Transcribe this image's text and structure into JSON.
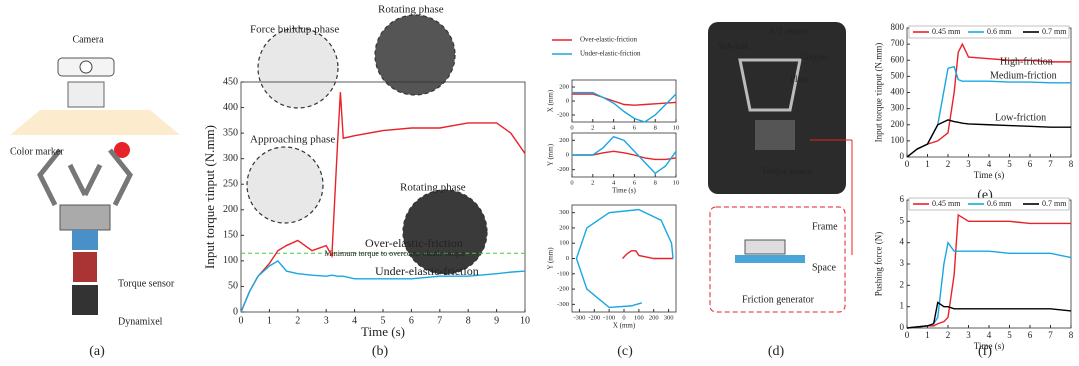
{
  "figure": {
    "captions": [
      "(a)",
      "(b)",
      "(c)",
      "(d)",
      "(e)",
      "(f)"
    ],
    "a_labels": [
      "Camera",
      "Color marker",
      "Torque sensor",
      "Dynamixel"
    ],
    "d_labels": [
      "Sub-link",
      "F/T sensor",
      "Gripper",
      "Plate",
      "Torque sensor",
      "Frame",
      "Space",
      "Friction generator"
    ]
  },
  "chart_data": [
    {
      "type": "line",
      "ylabel": "Input torque τinput (N.mm)",
      "xlabel": "Time (s)",
      "x": [
        0,
        0.3,
        0.6,
        1,
        1.3,
        1.6,
        2,
        2.5,
        3,
        3.2,
        3.4,
        3.5,
        3.6,
        4,
        5,
        6,
        7,
        8,
        9,
        9.5,
        10
      ],
      "series": [
        {
          "name": "Over-elastic-friction",
          "color": "#e8222a",
          "values": [
            0,
            40,
            70,
            95,
            120,
            130,
            140,
            120,
            130,
            110,
            330,
            430,
            340,
            345,
            355,
            360,
            360,
            370,
            370,
            350,
            310
          ]
        },
        {
          "name": "Under-elastic-friction",
          "color": "#1aa7e0",
          "values": [
            0,
            40,
            70,
            90,
            100,
            80,
            75,
            72,
            70,
            72,
            70,
            70,
            70,
            65,
            65,
            65,
            70,
            70,
            75,
            78,
            80
          ]
        }
      ],
      "threshold": {
        "value": 115,
        "label": "Minimum torque to overcome elastic torque",
        "color": "#3ecf3e"
      },
      "annotations": [
        {
          "text": "Force buildup phase",
          "color": "#000"
        },
        {
          "text": "Rotating phase",
          "color": "#000"
        },
        {
          "text": "Approaching phase",
          "color": "#000"
        },
        {
          "text": "Rotating phase",
          "color": "#000"
        }
      ],
      "xlim": [
        0,
        10
      ],
      "xticks": [
        0,
        1,
        2,
        3,
        4,
        5,
        6,
        7,
        8,
        9,
        10
      ],
      "ylim": [
        0,
        450
      ],
      "yticks": [
        0,
        50,
        100,
        150,
        200,
        250,
        300,
        350,
        400,
        450
      ]
    },
    {
      "type": "line",
      "ylabel": "X (mm)",
      "x": [
        0,
        1,
        2,
        3,
        4,
        5,
        6,
        7,
        8,
        9,
        10
      ],
      "series": [
        {
          "name": "Over-elastic-friction",
          "color": "#e8222a",
          "values": [
            100,
            100,
            100,
            50,
            0,
            -50,
            -60,
            -50,
            -40,
            -30,
            -20
          ]
        },
        {
          "name": "Under-elastic-friction",
          "color": "#1aa7e0",
          "values": [
            120,
            120,
            120,
            50,
            -30,
            -150,
            -250,
            -300,
            -200,
            -50,
            100
          ]
        }
      ],
      "xlim": [
        0,
        10
      ],
      "xticks": [
        0,
        2,
        4,
        6,
        8,
        10
      ],
      "ylim": [
        -300,
        300
      ],
      "yticks": [
        -200,
        0,
        200
      ]
    },
    {
      "type": "line",
      "ylabel": "Y (mm)",
      "xlabel": "Time (s)",
      "x": [
        0,
        1,
        2,
        3,
        4,
        5,
        6,
        7,
        8,
        9,
        10
      ],
      "series": [
        {
          "color": "#e8222a",
          "values": [
            0,
            0,
            0,
            30,
            50,
            30,
            0,
            -40,
            -60,
            -60,
            -40
          ]
        },
        {
          "color": "#1aa7e0",
          "values": [
            0,
            0,
            0,
            100,
            250,
            200,
            50,
            -100,
            -250,
            -150,
            50
          ]
        }
      ],
      "xlim": [
        0,
        10
      ],
      "xticks": [
        0,
        2,
        4,
        6,
        8,
        10
      ],
      "ylim": [
        -300,
        300
      ],
      "yticks": [
        -200,
        0,
        200
      ]
    },
    {
      "type": "line",
      "ylabel": "Y (mm)",
      "xlabel": "X (mm)",
      "series": [
        {
          "color": "#e8222a",
          "x": [
            330,
            200,
            100,
            80,
            50,
            20,
            -10
          ],
          "values": [
            0,
            0,
            20,
            50,
            50,
            30,
            0
          ]
        },
        {
          "color": "#1aa7e0",
          "x": [
            330,
            320,
            250,
            100,
            -100,
            -250,
            -320,
            -250,
            -100,
            50,
            120
          ],
          "values": [
            0,
            100,
            250,
            320,
            300,
            200,
            0,
            -200,
            -320,
            -310,
            -290
          ]
        }
      ],
      "xlim": [
        -350,
        350
      ],
      "xticks": [
        -300,
        -200,
        -100,
        0,
        100,
        200,
        300
      ],
      "ylim": [
        -350,
        350
      ],
      "yticks": [
        -300,
        -200,
        -100,
        0,
        100,
        200,
        300
      ]
    },
    {
      "type": "line",
      "ylabel": "Input torque τinput (N.mm)",
      "xlabel": "Time (s)",
      "x": [
        0,
        0.5,
        1,
        1.5,
        2,
        2.3,
        2.5,
        2.7,
        3,
        4,
        5,
        6,
        7,
        8
      ],
      "series": [
        {
          "name": "0.45 mm",
          "color": "#e8222a",
          "values": [
            0,
            50,
            80,
            100,
            150,
            400,
            650,
            700,
            620,
            610,
            600,
            600,
            590,
            590
          ]
        },
        {
          "name": "0.6 mm",
          "color": "#1aa7e0",
          "values": [
            0,
            50,
            80,
            200,
            550,
            560,
            480,
            470,
            470,
            470,
            465,
            465,
            460,
            460
          ]
        },
        {
          "name": "0.7 mm",
          "color": "#000000",
          "values": [
            0,
            50,
            80,
            200,
            230,
            220,
            215,
            210,
            205,
            200,
            195,
            190,
            185,
            185
          ]
        }
      ],
      "annotations": [
        {
          "text": "High-friction",
          "color": "#e8222a"
        },
        {
          "text": "Medium-friction",
          "color": "#1aa7e0"
        },
        {
          "text": "Low-friction",
          "color": "#000"
        }
      ],
      "xlim": [
        0,
        8
      ],
      "xticks": [
        0,
        1,
        2,
        3,
        4,
        5,
        6,
        7,
        8
      ],
      "ylim": [
        0,
        800
      ],
      "yticks": [
        0,
        100,
        200,
        300,
        400,
        500,
        600,
        700,
        800
      ]
    },
    {
      "type": "line",
      "ylabel": "Pushing force (N)",
      "xlabel": "Time (s)",
      "x": [
        0,
        1,
        1.3,
        1.5,
        1.8,
        2,
        2.3,
        2.5,
        3,
        4,
        5,
        6,
        7,
        8
      ],
      "series": [
        {
          "name": "0.45 mm",
          "color": "#e8222a",
          "values": [
            0,
            0.1,
            0.1,
            0.2,
            0.3,
            0.5,
            2.5,
            5.3,
            5,
            5,
            5,
            4.9,
            4.9,
            4.9
          ]
        },
        {
          "name": "0.6 mm",
          "color": "#1aa7e0",
          "values": [
            0,
            0.1,
            0.2,
            0.5,
            3,
            4,
            3.6,
            3.6,
            3.6,
            3.6,
            3.5,
            3.5,
            3.5,
            3.3
          ]
        },
        {
          "name": "0.7 mm",
          "color": "#000000",
          "values": [
            0,
            0.1,
            0.2,
            1.2,
            1,
            1,
            0.9,
            0.9,
            0.9,
            0.9,
            0.9,
            0.9,
            0.9,
            0.8
          ]
        }
      ],
      "xlim": [
        0,
        8
      ],
      "xticks": [
        0,
        1,
        2,
        3,
        4,
        5,
        6,
        7,
        8
      ],
      "ylim": [
        0,
        6
      ],
      "yticks": [
        0,
        1,
        2,
        3,
        4,
        5,
        6
      ]
    }
  ]
}
